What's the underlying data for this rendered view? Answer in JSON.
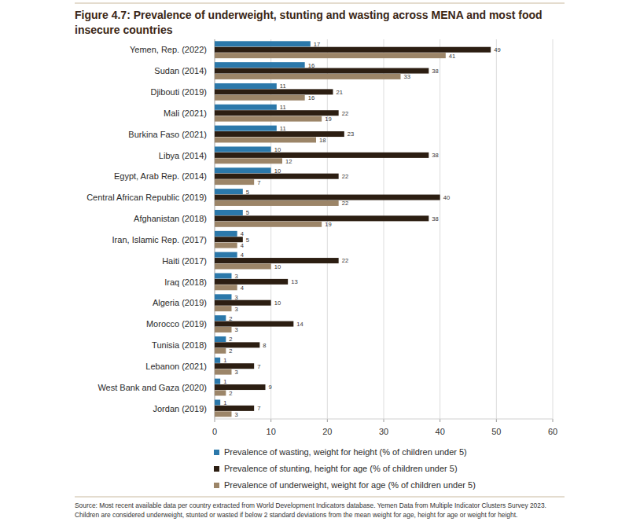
{
  "chart_data": {
    "type": "bar",
    "orientation": "horizontal",
    "title": "Figure 4.7: Prevalence of underweight, stunting and wasting across MENA and most food insecure countries",
    "source": "Source: Most recent available data per country extracted from World Development Indicators database. Yemen Data from Multiple Indicator Clusters Survey 2023. Children are considered underweight, stunted or wasted if below 2 standard deviations from the mean weight for age, height for age or weight for height.",
    "categories": [
      "Yemen, Rep. (2022)",
      "Sudan (2014)",
      "Djibouti (2019)",
      "Mali (2021)",
      "Burkina Faso (2021)",
      "Libya (2014)",
      "Egypt, Arab Rep. (2014)",
      "Central African Republic (2019)",
      "Afghanistan (2018)",
      "Iran, Islamic Rep. (2017)",
      "Haiti (2017)",
      "Iraq (2018)",
      "Algeria (2019)",
      "Morocco (2019)",
      "Tunisia (2018)",
      "Lebanon (2021)",
      "West Bank and Gaza (2020)",
      "Jordan (2019)"
    ],
    "series": [
      {
        "name": "Prevalence of wasting, weight for height (% of children under 5)",
        "color": "#2b78aa",
        "values": [
          17,
          16,
          11,
          11,
          11,
          10,
          10,
          5,
          5,
          4,
          4,
          3,
          3,
          2,
          2,
          1,
          1,
          1
        ]
      },
      {
        "name": "Prevalence of stunting, height for age (% of children under 5)",
        "color": "#2c1e12",
        "values": [
          49,
          38,
          21,
          22,
          23,
          38,
          22,
          40,
          38,
          5,
          22,
          13,
          10,
          14,
          8,
          7,
          9,
          7
        ]
      },
      {
        "name": "Prevalence of underweight, weight for age (% of children under 5)",
        "color": "#9c8568",
        "values": [
          41,
          33,
          16,
          19,
          18,
          12,
          7,
          22,
          19,
          4,
          10,
          4,
          3,
          3,
          2,
          3,
          2,
          3
        ]
      }
    ],
    "xlim": [
      0,
      60
    ],
    "xticks": [
      0,
      10,
      20,
      30,
      40,
      50,
      60
    ],
    "grid": true,
    "data_labels": true,
    "legend": "bottom"
  }
}
